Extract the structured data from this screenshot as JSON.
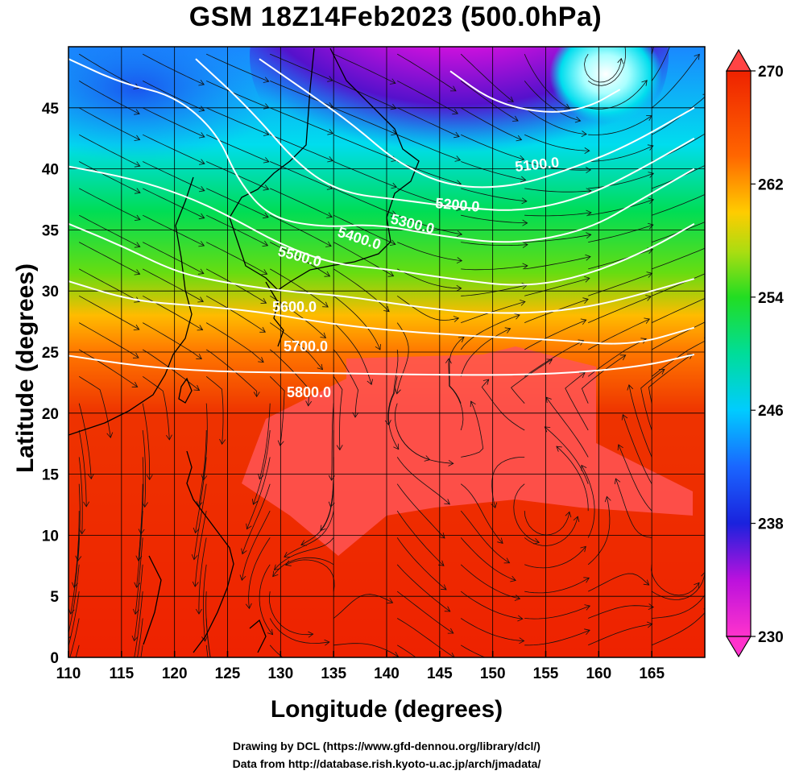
{
  "title": "GSM 18Z14Feb2023 (500.0hPa)",
  "xlabel": "Longitude (degrees)",
  "ylabel": "Latitude  (degrees)",
  "x_ticks": [
    "110",
    "115",
    "120",
    "125",
    "130",
    "135",
    "140",
    "145",
    "150",
    "155",
    "160",
    "165"
  ],
  "y_ticks": [
    "0",
    "5",
    "10",
    "15",
    "20",
    "25",
    "30",
    "35",
    "40",
    "45"
  ],
  "colorbar_ticks": [
    "230",
    "238",
    "246",
    "254",
    "262",
    "270"
  ],
  "contour_labels": [
    "5100.0",
    "5200.0",
    "5300.0",
    "5400.0",
    "5500.0",
    "5600.0",
    "5700.0",
    "5800.0"
  ],
  "credit_line1": "Drawing by DCL (https://www.gfd-dennou.org/library/dcl/)",
  "credit_line2": "Data from http://database.rish.kyoto-u.ac.jp/arch/jmadata/",
  "chart_data": {
    "type": "heatmap",
    "title": "GSM 18Z14Feb2023 (500.0hPa)",
    "xlabel": "Longitude (degrees)",
    "ylabel": "Latitude  (degrees)",
    "xlim": [
      110,
      170
    ],
    "ylim": [
      0,
      50
    ],
    "colorbar_range": [
      230,
      270
    ],
    "colorbar_colors": [
      "#ff33cc",
      "#9900dd",
      "#1a22dd",
      "#1a88ff",
      "#00ddee",
      "#00dd55",
      "#55cc11",
      "#dddd11",
      "#ff8800",
      "#ee2200",
      "#ff4444"
    ],
    "contours": [
      {
        "value": 5100.0,
        "points": [
          [
            146,
            48
          ],
          [
            150,
            45.5
          ],
          [
            155,
            44.5
          ],
          [
            159,
            45
          ],
          [
            162,
            46.5
          ]
        ]
      },
      {
        "value": 5200.0,
        "points": [
          [
            128,
            49
          ],
          [
            133,
            46
          ],
          [
            137,
            43.5
          ],
          [
            141,
            40.5
          ],
          [
            146,
            38.5
          ],
          [
            152,
            38.5
          ],
          [
            158,
            40.2
          ],
          [
            163,
            42
          ],
          [
            169,
            45
          ]
        ]
      },
      {
        "value": 5300.0,
        "points": [
          [
            122,
            49
          ],
          [
            127,
            45
          ],
          [
            132,
            40
          ],
          [
            136,
            38
          ],
          [
            141,
            37.5
          ],
          [
            147,
            36.8
          ],
          [
            153,
            36.5
          ],
          [
            159,
            37.8
          ],
          [
            164,
            40
          ],
          [
            169,
            42.5
          ]
        ]
      },
      {
        "value": 5400.0,
        "points": [
          [
            110,
            49
          ],
          [
            115,
            47
          ],
          [
            120,
            46
          ],
          [
            124,
            43
          ],
          [
            126,
            39
          ],
          [
            129,
            36
          ],
          [
            134,
            35.2
          ],
          [
            139,
            35.5
          ],
          [
            145,
            34.5
          ],
          [
            152,
            33.8
          ],
          [
            159,
            35
          ],
          [
            164,
            37.5
          ],
          [
            169,
            40
          ]
        ]
      },
      {
        "value": 5500.0,
        "points": [
          [
            110,
            40.2
          ],
          [
            116,
            39.2
          ],
          [
            121,
            37.8
          ],
          [
            125,
            36.2
          ],
          [
            130,
            33.8
          ],
          [
            135,
            32.2
          ],
          [
            140,
            31.8
          ],
          [
            146,
            31
          ],
          [
            153,
            30.3
          ],
          [
            159,
            31.3
          ],
          [
            165,
            33.5
          ],
          [
            169,
            35.5
          ]
        ]
      },
      {
        "value": 5600.0,
        "points": [
          [
            110,
            35.5
          ],
          [
            115,
            33.7
          ],
          [
            120,
            31.6
          ],
          [
            124,
            30.8
          ],
          [
            130,
            30
          ],
          [
            136,
            29.6
          ],
          [
            142,
            28.8
          ],
          [
            148,
            28.2
          ],
          [
            155,
            28.2
          ],
          [
            161,
            29
          ],
          [
            169,
            31
          ]
        ]
      },
      {
        "value": 5700.0,
        "points": [
          [
            110,
            30.8
          ],
          [
            116,
            29.2
          ],
          [
            122,
            28.8
          ],
          [
            128,
            28.3
          ],
          [
            134,
            27.4
          ],
          [
            140,
            26.8
          ],
          [
            148,
            26.3
          ],
          [
            156,
            26
          ],
          [
            163,
            25.5
          ],
          [
            169,
            27
          ]
        ]
      },
      {
        "value": 5800.0,
        "points": [
          [
            110,
            24.7
          ],
          [
            117,
            23.8
          ],
          [
            124,
            23.4
          ],
          [
            132,
            23.3
          ],
          [
            140,
            23.2
          ],
          [
            148,
            23.1
          ],
          [
            156,
            23.2
          ],
          [
            164,
            23.8
          ],
          [
            169,
            24.8
          ]
        ]
      }
    ],
    "vortex_centers": [
      [
        160,
        48.5
      ],
      [
        143,
        20
      ],
      [
        155,
        12
      ],
      [
        131,
        5
      ],
      [
        168,
        7
      ]
    ]
  }
}
